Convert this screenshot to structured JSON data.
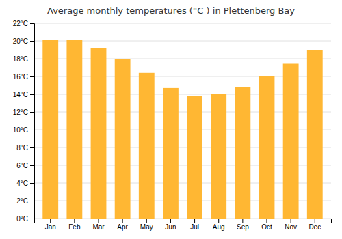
{
  "chart_data": {
    "type": "bar",
    "title": "Average monthly temperatures (°C ) in Plettenberg Bay",
    "categories": [
      "Jan",
      "Feb",
      "Mar",
      "Apr",
      "May",
      "Jun",
      "Jul",
      "Aug",
      "Sep",
      "Oct",
      "Nov",
      "Dec"
    ],
    "values": [
      20.1,
      20.1,
      19.2,
      18.0,
      16.4,
      14.7,
      13.8,
      14.0,
      14.8,
      16.0,
      17.5,
      19.0
    ],
    "color": "#FFB733",
    "ylim": [
      0,
      22
    ],
    "yticks": [
      {
        "value": 0,
        "label": "0°C"
      },
      {
        "value": 2,
        "label": "2°C"
      },
      {
        "value": 4,
        "label": "4°C"
      },
      {
        "value": 6,
        "label": "6°C"
      },
      {
        "value": 8,
        "label": "8°C"
      },
      {
        "value": 10,
        "label": "10°C"
      },
      {
        "value": 12,
        "label": "12°C"
      },
      {
        "value": 14,
        "label": "14°C"
      },
      {
        "value": 16,
        "label": "16°C"
      },
      {
        "value": 18,
        "label": "18°C"
      },
      {
        "value": 20,
        "label": "20°C"
      },
      {
        "value": 22,
        "label": "22°C"
      }
    ],
    "grid": true
  }
}
